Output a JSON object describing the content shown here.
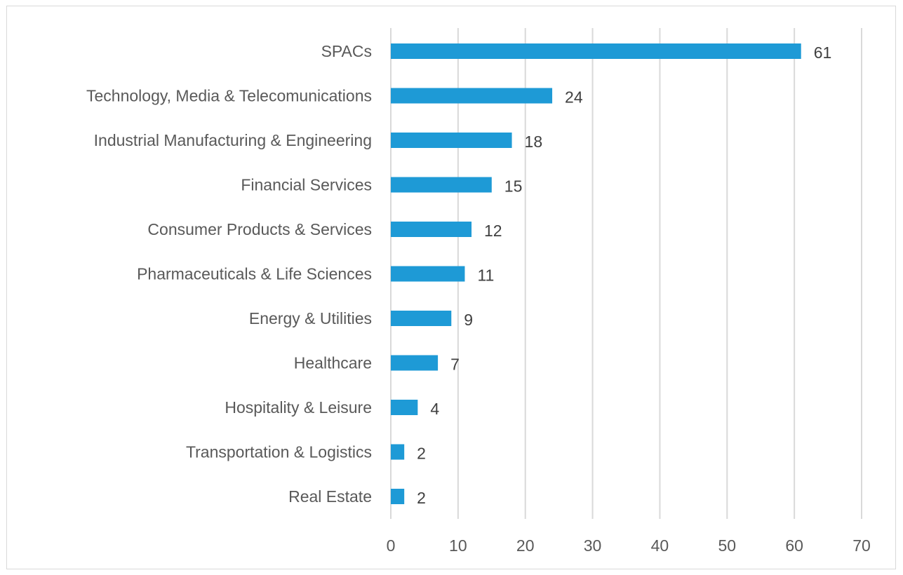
{
  "chart_data": {
    "type": "bar",
    "orientation": "horizontal",
    "categories": [
      "SPACs",
      "Technology, Media & Telecomunications",
      "Industrial Manufacturing & Engineering",
      "Financial Services",
      "Consumer Products & Services",
      "Pharmaceuticals & Life Sciences",
      "Energy & Utilities",
      "Healthcare",
      "Hospitality & Leisure",
      "Transportation & Logistics",
      "Real Estate"
    ],
    "values": [
      61,
      24,
      18,
      15,
      12,
      11,
      9,
      7,
      4,
      2,
      2
    ],
    "xlim": [
      0,
      70
    ],
    "xticks": [
      0,
      10,
      20,
      30,
      40,
      50,
      60,
      70
    ],
    "grid": true,
    "data_labels": true,
    "bar_color": "#1E9AD6",
    "title": "",
    "xlabel": "",
    "ylabel": ""
  }
}
